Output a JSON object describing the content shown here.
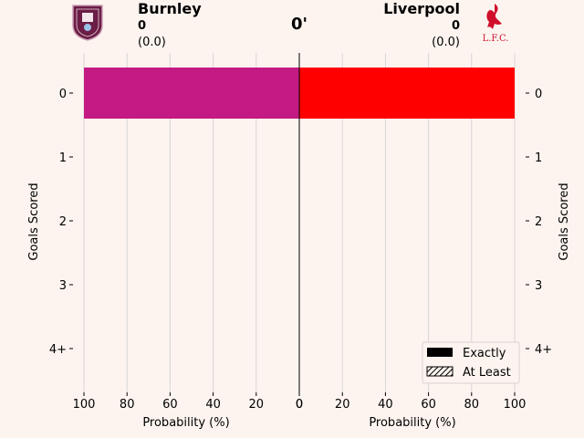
{
  "header": {
    "home": {
      "name": "Burnley",
      "goals": "0",
      "xg": "(0.0)",
      "color": "#c41a83",
      "crest_icon": "burnley-crest-icon"
    },
    "away": {
      "name": "Liverpool",
      "goals": "0",
      "xg": "(0.0)",
      "color": "#ff0000",
      "crest_icon": "liverpool-crest-icon",
      "crest_text": "L.F.C."
    },
    "minute": "0'"
  },
  "chart_data": {
    "type": "bar",
    "orientation": "horizontal-mirrored",
    "categories": [
      "0",
      "1",
      "2",
      "3",
      "4+"
    ],
    "series": [
      {
        "name": "Burnley",
        "side": "left",
        "color": "#c41a83",
        "exactly": [
          100,
          0,
          0,
          0,
          0
        ],
        "at_least": [
          100,
          0,
          0,
          0,
          0
        ]
      },
      {
        "name": "Liverpool",
        "side": "right",
        "color": "#ff0000",
        "exactly": [
          100,
          0,
          0,
          0,
          0
        ],
        "at_least": [
          100,
          0,
          0,
          0,
          0
        ]
      }
    ],
    "xlim": [
      0,
      100
    ],
    "xticks": [
      "100",
      "80",
      "60",
      "40",
      "20",
      "0",
      "0",
      "20",
      "40",
      "60",
      "80",
      "100"
    ],
    "xlabel_left": "Probability (%)",
    "xlabel_right": "Probability (%)",
    "ylabel_left": "Goals Scored",
    "ylabel_right": "Goals Scored",
    "grid": true,
    "legend": {
      "position": "bottom-right",
      "entries": [
        "Exactly",
        "At Least"
      ]
    }
  }
}
